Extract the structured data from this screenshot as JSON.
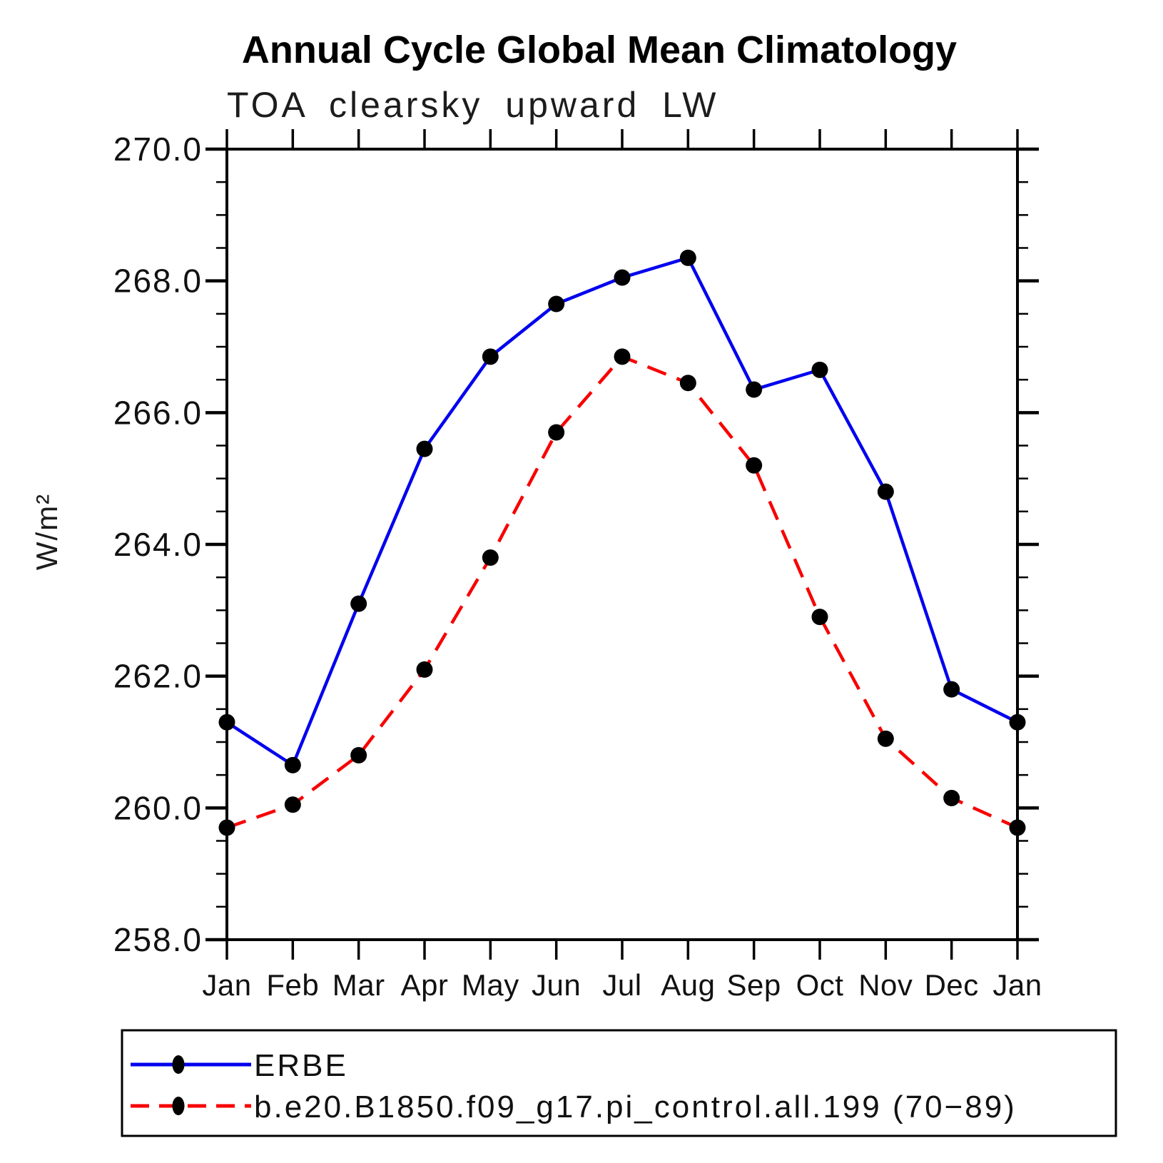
{
  "title": "Annual Cycle Global Mean Climatology",
  "subtitle": "TOA clearsky upward LW",
  "ylabel": "W/m²",
  "chart_data": {
    "type": "line",
    "categories": [
      "Jan",
      "Feb",
      "Mar",
      "Apr",
      "May",
      "Jun",
      "Jul",
      "Aug",
      "Sep",
      "Oct",
      "Nov",
      "Dec",
      "Jan"
    ],
    "series": [
      {
        "name": "ERBE",
        "color": "#0000ee",
        "style": "solid",
        "marker": "circle",
        "marker_color": "#000000",
        "values": [
          261.3,
          260.65,
          263.1,
          265.45,
          266.85,
          267.65,
          268.05,
          268.35,
          266.35,
          266.65,
          264.8,
          261.8,
          261.3
        ]
      },
      {
        "name": "b.e20.B1850.f09_g17.pi_control.all.199 (70−89)",
        "color": "#f80000",
        "style": "dashed",
        "marker": "circle",
        "marker_color": "#000000",
        "values": [
          259.7,
          260.05,
          260.8,
          262.1,
          263.8,
          265.7,
          266.85,
          266.45,
          265.2,
          262.9,
          261.05,
          260.15,
          259.7
        ]
      }
    ],
    "ylim": [
      258.0,
      270.0
    ],
    "y_major_step": 2.0,
    "y_minor_step": 0.5,
    "y_tick_labels": [
      "258.0",
      "260.0",
      "262.0",
      "264.0",
      "266.0",
      "268.0",
      "270.0"
    ],
    "xlabel": "",
    "grid": false,
    "legend_position": "bottom-left"
  },
  "legend": {
    "entries": [
      {
        "label": "ERBE"
      },
      {
        "label": "b.e20.B1850.f09_g17.pi_control.all.199 (70−89)"
      }
    ]
  }
}
